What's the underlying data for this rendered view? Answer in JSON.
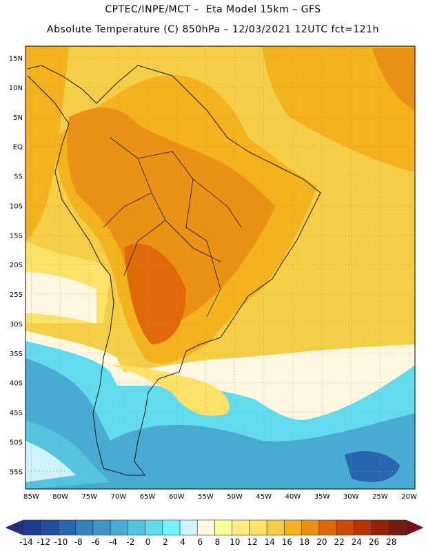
{
  "header": {
    "line1": "CPTEC/INPE/MCT –  Eta Model 15km – GFS",
    "line2": "Absolute Temperature (C) 850hPa – 12/03/2021 12UTC fct=121h"
  },
  "map": {
    "lon_range": [
      -86,
      -19
    ],
    "lat_range": [
      -58,
      17
    ],
    "lon_ticks": [
      {
        "value": -85,
        "label": "85W"
      },
      {
        "value": -80,
        "label": "80W"
      },
      {
        "value": -75,
        "label": "75W"
      },
      {
        "value": -70,
        "label": "70W"
      },
      {
        "value": -65,
        "label": "65W"
      },
      {
        "value": -60,
        "label": "60W"
      },
      {
        "value": -55,
        "label": "55W"
      },
      {
        "value": -50,
        "label": "50W"
      },
      {
        "value": -45,
        "label": "45W"
      },
      {
        "value": -40,
        "label": "40W"
      },
      {
        "value": -35,
        "label": "35W"
      },
      {
        "value": -30,
        "label": "30W"
      },
      {
        "value": -25,
        "label": "25W"
      },
      {
        "value": -20,
        "label": "20W"
      }
    ],
    "lat_ticks": [
      {
        "value": 15,
        "label": "15N"
      },
      {
        "value": 10,
        "label": "10N"
      },
      {
        "value": 5,
        "label": "5N"
      },
      {
        "value": 0,
        "label": "EQ"
      },
      {
        "value": -5,
        "label": "5S"
      },
      {
        "value": -10,
        "label": "10S"
      },
      {
        "value": -15,
        "label": "15S"
      },
      {
        "value": -20,
        "label": "20S"
      },
      {
        "value": -25,
        "label": "25S"
      },
      {
        "value": -30,
        "label": "30S"
      },
      {
        "value": -35,
        "label": "35S"
      },
      {
        "value": -40,
        "label": "40S"
      },
      {
        "value": -45,
        "label": "45S"
      },
      {
        "value": -50,
        "label": "50S"
      },
      {
        "value": -55,
        "label": "55S"
      }
    ],
    "gridlines": "dotted"
  },
  "colorbar": {
    "labels": [
      "-14",
      "-12",
      "-10",
      "-8",
      "-6",
      "-4",
      "-2",
      "0",
      "2",
      "4",
      "6",
      "8",
      "10",
      "12",
      "14",
      "16",
      "18",
      "20",
      "22",
      "24",
      "26",
      "28"
    ],
    "colors": [
      "#1e3c8c",
      "#234f9e",
      "#2a66b0",
      "#3680be",
      "#4196c8",
      "#4aabd2",
      "#55c2de",
      "#62dcec",
      "#73f4fb",
      "#cef4fb",
      "#fff7e0",
      "#ffff9a",
      "#ffee7e",
      "#fde26a",
      "#f4ce46",
      "#f2b31e",
      "#ea9216",
      "#e06a0a",
      "#cc4a08",
      "#b53509",
      "#952409",
      "#741d10"
    ],
    "low_extend_color": "#1f2f80",
    "high_extend_color": "#7e0c20"
  }
}
